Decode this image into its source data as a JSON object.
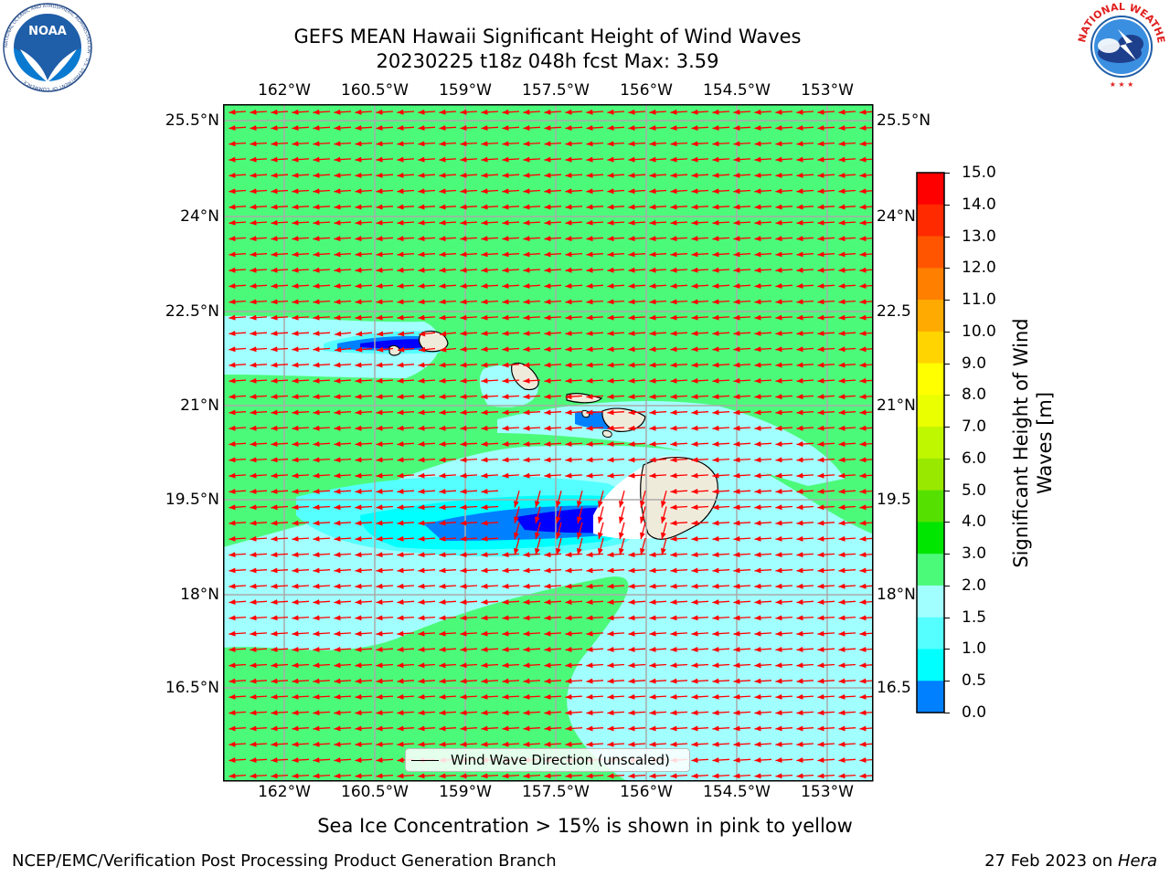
{
  "title": {
    "line1": "GEFS MEAN Hawaii Significant Height of Wind Waves",
    "line2": "20230225 t18z 048h fcst   Max: 3.59"
  },
  "map": {
    "lon_labels": [
      "162°W",
      "160.5°W",
      "159°W",
      "157.5°W",
      "156°W",
      "154.5°W",
      "153°W"
    ],
    "lat_labels": [
      "25.5°N",
      "24°N",
      "22.5°N",
      "21°N",
      "19.5°N",
      "18°N",
      "16.5°N"
    ],
    "lat_labels_right": [
      "25.5°N",
      "24°N",
      "22.5",
      "21°N",
      "19.5",
      "18°N",
      "16.5"
    ],
    "field": "Significant Height of Wind Waves",
    "max_value": 3.59,
    "arrow_color": "#ff0000",
    "land_color": "#efebdb"
  },
  "legend": {
    "label": "Wind Wave Direction (unscaled)"
  },
  "colorbar": {
    "label": "Significant Height of Wind Waves [m]",
    "label_line1": "Significant Height of Wind",
    "label_line2": "Waves [m]",
    "ticks": [
      "15.0",
      "14.0",
      "13.0",
      "12.0",
      "11.0",
      "10.0",
      "9.0",
      "8.0",
      "7.0",
      "6.0",
      "5.0",
      "4.0",
      "3.0",
      "2.0",
      "1.5",
      "1.0",
      "0.5",
      "0.0"
    ],
    "colors": [
      "#ff0000",
      "#ff2a00",
      "#ff5500",
      "#ff7f00",
      "#ffaa00",
      "#ffd400",
      "#ffff00",
      "#eaff00",
      "#bff700",
      "#99e800",
      "#55e000",
      "#00e600",
      "#4cfa7a",
      "#a2ffff",
      "#55ffff",
      "#00ffff",
      "#0080ff",
      "#0000ff"
    ]
  },
  "logos": {
    "left_text": "NOAA",
    "left_ring": "NATIONAL OCEANIC AND ATMOSPHERIC ADMINISTRATION · U.S. DEPARTMENT OF COMMERCE",
    "right_ring": "NATIONAL WEATHER SERVICE"
  },
  "caption": "Sea Ice Concentration > 15% is shown in pink to yellow",
  "footer": {
    "left": "NCEP/EMC/Verification Post Processing Product Generation Branch",
    "right_date": "27 Feb 2023 on ",
    "right_host": "Hera"
  }
}
